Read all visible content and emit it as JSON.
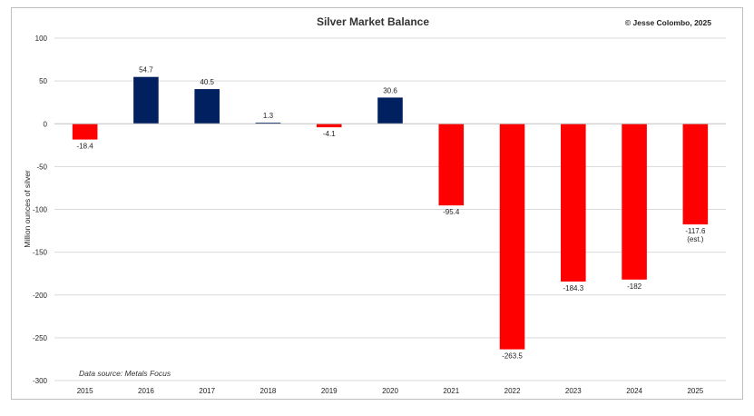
{
  "chart_data": {
    "type": "bar",
    "title": "Silver Market Balance",
    "credit": "© Jesse Colombo, 2025",
    "ylabel": "Million ounces of silver",
    "source": "Data source: Metals Focus",
    "categories": [
      "2015",
      "2016",
      "2017",
      "2018",
      "2019",
      "2020",
      "2021",
      "2022",
      "2023",
      "2024",
      "2025"
    ],
    "values": [
      -18.4,
      54.7,
      40.5,
      1.3,
      -4.1,
      30.6,
      -95.4,
      -263.5,
      -184.3,
      -182,
      -117.6
    ],
    "labels": [
      "-18.4",
      "54.7",
      "40.5",
      "1.3",
      "-4.1",
      "30.6",
      "-95.4",
      "-263.5",
      "-184.3",
      "-182",
      "-117.6"
    ],
    "label_notes": [
      "",
      "",
      "",
      "",
      "",
      "",
      "",
      "",
      "",
      "",
      "(est.)"
    ],
    "ylim": [
      -300,
      100
    ],
    "yticks": [
      100,
      50,
      0,
      -50,
      -100,
      -150,
      -200,
      -250,
      -300
    ],
    "grid": true,
    "colors": {
      "positive": "#002060",
      "negative": "#ff0000",
      "grid": "#d9d9d9",
      "axis": "#bfbfbf"
    }
  }
}
